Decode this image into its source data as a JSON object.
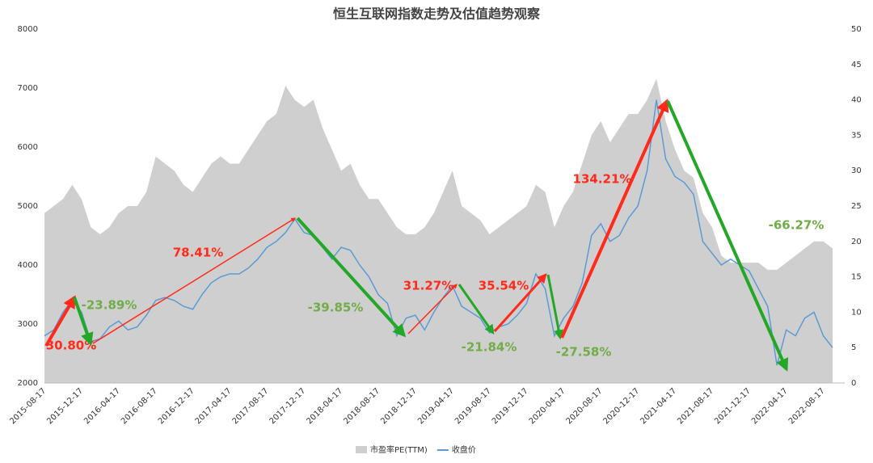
{
  "chart_data": {
    "type": "line",
    "title": "恒生互联网指数走势及估值趋势观察",
    "categories": [
      "2015-08-17",
      null,
      null,
      null,
      "2015-12-17",
      null,
      null,
      null,
      "2016-04-17",
      null,
      null,
      null,
      "2016-08-17",
      null,
      null,
      null,
      "2016-12-17",
      null,
      null,
      null,
      "2017-04-17",
      null,
      null,
      null,
      "2017-08-17",
      null,
      null,
      null,
      "2017-12-17",
      null,
      null,
      null,
      "2018-04-17",
      null,
      null,
      null,
      "2018-08-17",
      null,
      null,
      null,
      "2018-12-17",
      null,
      null,
      null,
      "2019-04-17",
      null,
      null,
      null,
      "2019-08-17",
      null,
      null,
      null,
      "2019-12-17",
      null,
      null,
      null,
      "2020-04-17",
      null,
      null,
      null,
      "2020-08-17",
      null,
      null,
      null,
      "2020-12-17",
      null,
      null,
      null,
      "2021-04-17",
      null,
      null,
      null,
      "2021-08-17",
      null,
      null,
      null,
      "2021-12-17",
      null,
      null,
      null,
      "2022-04-17",
      null,
      null,
      null,
      "2022-08-17",
      null
    ],
    "series": [
      {
        "name": "市盈率PE(TTM)",
        "color": "#d0cfcf",
        "axis": "y2",
        "kind": "area",
        "values": [
          24,
          25,
          26,
          28,
          26,
          22,
          21,
          22,
          24,
          25,
          25,
          27,
          32,
          31,
          30,
          28,
          27,
          29,
          31,
          32,
          31,
          31,
          33,
          35,
          37,
          38,
          42,
          40,
          39,
          40,
          36,
          33,
          30,
          31,
          28,
          26,
          26,
          24,
          22,
          21,
          21,
          22,
          24,
          27,
          30,
          25,
          24,
          23,
          21,
          22,
          23,
          24,
          25,
          28,
          27,
          22,
          25,
          27,
          31,
          35,
          37,
          34,
          36,
          38,
          38,
          40,
          43,
          37,
          33,
          30,
          29,
          24,
          22,
          18,
          17,
          17,
          17,
          17,
          16,
          16,
          17,
          18,
          19,
          20,
          20,
          19
        ]
      },
      {
        "name": "收盘价",
        "color": "#5b9bd5",
        "kind": "line",
        "values": [
          2800,
          2900,
          3200,
          3400,
          3200,
          2700,
          2750,
          2950,
          3050,
          2900,
          2950,
          3150,
          3400,
          3450,
          3400,
          3300,
          3250,
          3500,
          3700,
          3800,
          3850,
          3850,
          3950,
          4100,
          4300,
          4400,
          4550,
          4780,
          4550,
          4500,
          4300,
          4100,
          4300,
          4250,
          4000,
          3800,
          3500,
          3350,
          2800,
          3100,
          3150,
          2900,
          3200,
          3450,
          3650,
          3300,
          3200,
          3100,
          2850,
          2950,
          3000,
          3150,
          3350,
          3850,
          3600,
          2800,
          3100,
          3300,
          3700,
          4500,
          4700,
          4400,
          4500,
          4800,
          5000,
          5600,
          6800,
          5800,
          5500,
          5400,
          5200,
          4400,
          4200,
          4000,
          4100,
          4000,
          3900,
          3600,
          3300,
          2300,
          2900,
          2800,
          3100,
          3200,
          2800,
          2600
        ]
      }
    ],
    "ylim": [
      2000,
      8000
    ],
    "yticks": [
      2000,
      3000,
      4000,
      5000,
      6000,
      7000,
      8000
    ],
    "y2lim": [
      0,
      50
    ],
    "y2ticks": [
      0,
      5,
      10,
      15,
      20,
      25,
      30,
      35,
      40,
      45,
      50
    ],
    "legend": "bottom",
    "annotations": [
      {
        "text": "30.80%",
        "color": "#ff2a1a"
      },
      {
        "text": "-23.89%",
        "color": "#70ad47"
      },
      {
        "text": "78.41%",
        "color": "#ff2a1a"
      },
      {
        "text": "-39.85%",
        "color": "#70ad47"
      },
      {
        "text": "31.27%",
        "color": "#ff2a1a"
      },
      {
        "text": "-21.84%",
        "color": "#70ad47"
      },
      {
        "text": "35.54%",
        "color": "#ff2a1a"
      },
      {
        "text": "-27.58%",
        "color": "#70ad47"
      },
      {
        "text": "134.21%",
        "color": "#ff2a1a"
      },
      {
        "text": "-66.27%",
        "color": "#70ad47"
      }
    ]
  }
}
